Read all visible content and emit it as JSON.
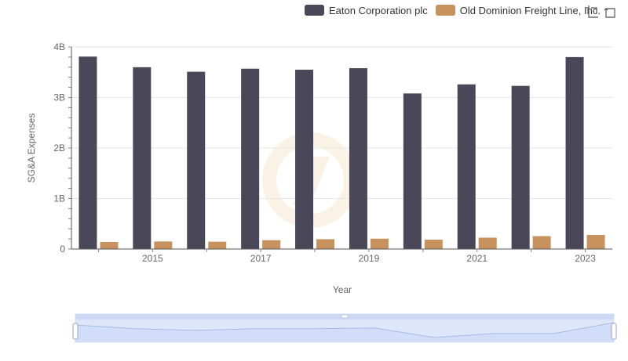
{
  "chart_data": {
    "type": "bar",
    "categories": [
      "2014",
      "2015",
      "2016",
      "2017",
      "2018",
      "2019",
      "2020",
      "2021",
      "2022",
      "2023"
    ],
    "x_tick_labels": [
      "2015",
      "2017",
      "2019",
      "2021",
      "2023"
    ],
    "series": [
      {
        "name": "Eaton Corporation plc",
        "color": "#4a4858",
        "values": [
          3810000000,
          3600000000,
          3510000000,
          3570000000,
          3550000000,
          3580000000,
          3080000000,
          3260000000,
          3230000000,
          3800000000
        ]
      },
      {
        "name": "Old Dominion Freight Line, Inc.",
        "color": "#c8925e",
        "values": [
          140000000,
          150000000,
          145000000,
          175000000,
          195000000,
          205000000,
          185000000,
          225000000,
          255000000,
          280000000
        ]
      }
    ],
    "y_ticks": [
      {
        "value": 0,
        "label": "0"
      },
      {
        "value": 1000000000,
        "label": "1B"
      },
      {
        "value": 2000000000,
        "label": "2B"
      },
      {
        "value": 3000000000,
        "label": "3B"
      },
      {
        "value": 4000000000,
        "label": "4B"
      }
    ],
    "xlabel": "Year",
    "ylabel": "SG&A Expenses",
    "ylim": [
      0,
      4000000000
    ],
    "legend_position": "top-right",
    "grid": true
  },
  "toolbar": {
    "icons": [
      "zoom-icon",
      "restore-icon"
    ]
  }
}
